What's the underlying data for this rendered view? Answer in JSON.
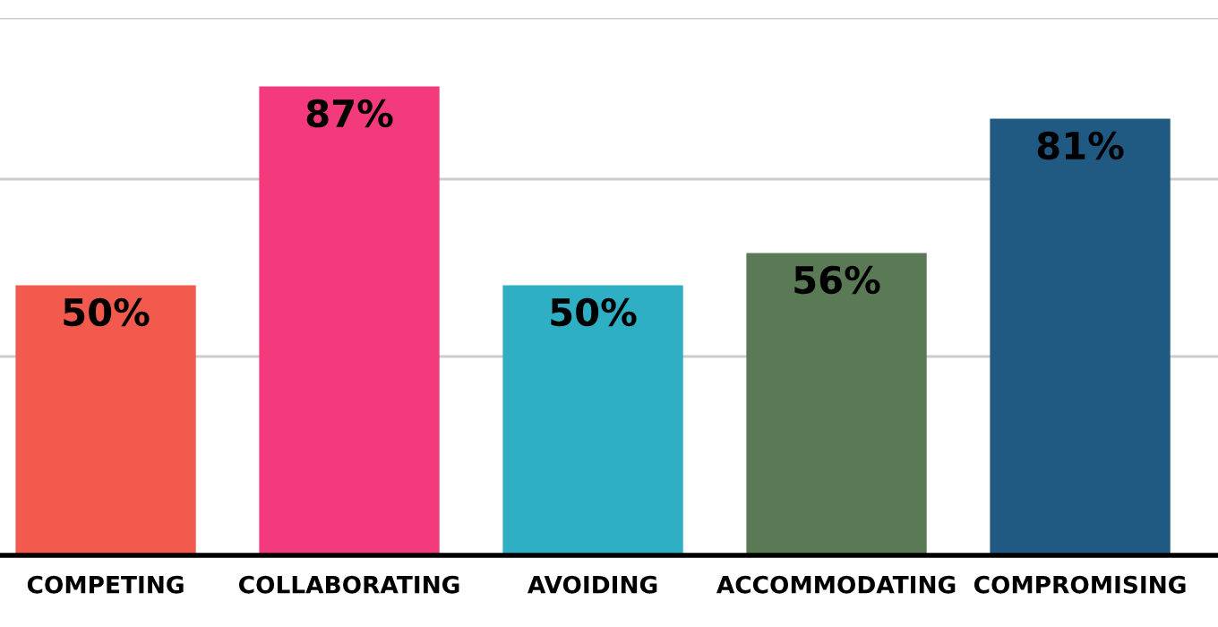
{
  "chart_data": {
    "type": "bar",
    "categories": [
      "COMPETING",
      "COLLABORATING",
      "AVOIDING",
      "ACCOMMODATING",
      "COMPROMISING"
    ],
    "values": [
      50,
      87,
      50,
      56,
      81
    ],
    "value_labels": [
      "50%",
      "87%",
      "50%",
      "56%",
      "81%"
    ],
    "colors": [
      "#f25a4e",
      "#f23a7c",
      "#2eafc4",
      "#5a7a56",
      "#205a82"
    ],
    "ylim": [
      0,
      100
    ],
    "ref_lines": [
      {
        "axis": "y",
        "value": 37,
        "color": "#cccccc"
      },
      {
        "axis": "y",
        "value": 70,
        "color": "#cccccc"
      },
      {
        "axis": "y",
        "value": 100,
        "color": "#cccccc"
      }
    ]
  }
}
